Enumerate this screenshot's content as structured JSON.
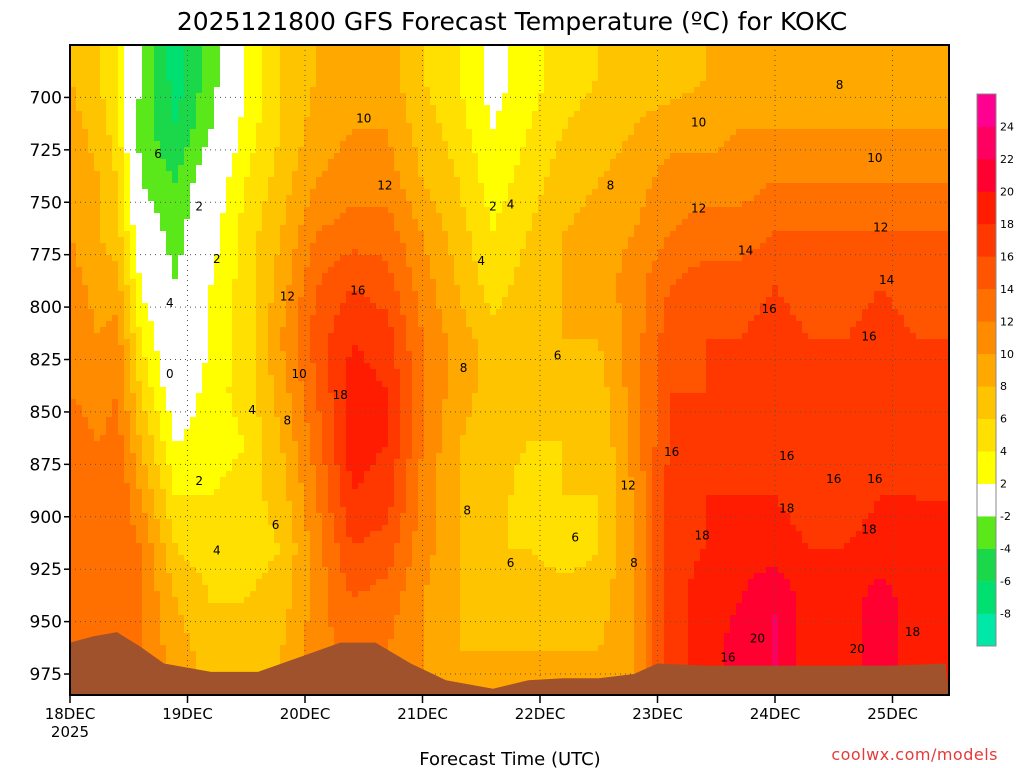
{
  "chart_data": {
    "type": "heatmap",
    "title": "2025121800 GFS Forecast Temperature (ºC) for KOKC",
    "xlabel": "Forecast Time (UTC)",
    "ylabel": "",
    "x_ticks": [
      {
        "label": "18DEC",
        "sub": "2025",
        "day": 0
      },
      {
        "label": "19DEC",
        "sub": "",
        "day": 1
      },
      {
        "label": "20DEC",
        "sub": "",
        "day": 2
      },
      {
        "label": "21DEC",
        "sub": "",
        "day": 3
      },
      {
        "label": "22DEC",
        "sub": "",
        "day": 4
      },
      {
        "label": "23DEC",
        "sub": "",
        "day": 5
      },
      {
        "label": "24DEC",
        "sub": "",
        "day": 6
      },
      {
        "label": "25DEC",
        "sub": "",
        "day": 7
      }
    ],
    "x_range_days": [
      0,
      7.45
    ],
    "y_ticks": [
      700,
      725,
      750,
      775,
      800,
      825,
      850,
      875,
      900,
      925,
      950,
      975
    ],
    "y_range_hpa": [
      675,
      985
    ],
    "colorbar": {
      "levels": [
        -10,
        -8,
        -6,
        -4,
        -2,
        2,
        4,
        6,
        8,
        10,
        12,
        14,
        16,
        18,
        20,
        22,
        24,
        26
      ],
      "labels": [
        "-8",
        "-6",
        "-4",
        "-2",
        "2",
        "4",
        "6",
        "8",
        "10",
        "12",
        "14",
        "16",
        "18",
        "20",
        "22",
        "24"
      ],
      "colors": [
        "#00e8a8",
        "#00e070",
        "#1ad84a",
        "#5ae81a",
        "#ffffff",
        "#ffff00",
        "#ffe000",
        "#ffc400",
        "#ffa800",
        "#ff8c00",
        "#ff7000",
        "#ff5400",
        "#ff3800",
        "#ff1c00",
        "#ff0030",
        "#ff0060",
        "#ff0090"
      ]
    },
    "series": [
      {
        "time_day": 0.0,
        "profile": [
          8,
          9,
          10,
          10,
          11,
          12,
          12,
          13,
          13,
          13,
          13,
          13
        ]
      },
      {
        "time_day": 0.25,
        "profile": [
          6,
          7,
          8,
          8,
          9,
          10,
          11,
          12,
          13,
          13,
          13,
          13
        ]
      },
      {
        "time_day": 0.4,
        "profile": [
          4,
          5,
          6,
          7,
          9,
          11,
          12,
          13,
          14,
          14,
          14,
          14
        ]
      },
      {
        "time_day": 0.6,
        "profile": [
          -2,
          -3,
          -2,
          0,
          2,
          4,
          6,
          8,
          10,
          12,
          12,
          12
        ]
      },
      {
        "time_day": 0.9,
        "profile": [
          -7,
          -6,
          -4,
          -3,
          -2,
          -1,
          0,
          2,
          4,
          6,
          8,
          9
        ]
      },
      {
        "time_day": 1.2,
        "profile": [
          -3,
          -2,
          0,
          1,
          2,
          2,
          3,
          3,
          4,
          5,
          6,
          7
        ]
      },
      {
        "time_day": 1.5,
        "profile": [
          2,
          3,
          4,
          5,
          5,
          5,
          5,
          4,
          5,
          5,
          6,
          7
        ]
      },
      {
        "time_day": 1.8,
        "profile": [
          6,
          6,
          7,
          8,
          9,
          10,
          9,
          8,
          7,
          6,
          7,
          8
        ]
      },
      {
        "time_day": 2.1,
        "profile": [
          8,
          9,
          10,
          12,
          14,
          15,
          14,
          13,
          12,
          11,
          11,
          11
        ]
      },
      {
        "time_day": 2.4,
        "profile": [
          9,
          10,
          11,
          13,
          16,
          18,
          19,
          19,
          18,
          16,
          14,
          13
        ]
      },
      {
        "time_day": 2.7,
        "profile": [
          9,
          10,
          11,
          13,
          15,
          17,
          18,
          18,
          17,
          15,
          13,
          12
        ]
      },
      {
        "time_day": 3.0,
        "profile": [
          6,
          7,
          8,
          10,
          11,
          12,
          12,
          12,
          11,
          11,
          10,
          10
        ]
      },
      {
        "time_day": 3.3,
        "profile": [
          4,
          5,
          6,
          7,
          8,
          9,
          9,
          8,
          8,
          8,
          8,
          8
        ]
      },
      {
        "time_day": 3.6,
        "profile": [
          1,
          2,
          3,
          4,
          5,
          7,
          7,
          7,
          7,
          6,
          7,
          8
        ]
      },
      {
        "time_day": 3.9,
        "profile": [
          3,
          4,
          5,
          6,
          7,
          7,
          6,
          6,
          5,
          6,
          7,
          8
        ]
      },
      {
        "time_day": 4.2,
        "profile": [
          5,
          6,
          7,
          8,
          8,
          8,
          7,
          6,
          6,
          5,
          7,
          8
        ]
      },
      {
        "time_day": 4.5,
        "profile": [
          6,
          7,
          8,
          9,
          9,
          8,
          7,
          6,
          6,
          6,
          7,
          8
        ]
      },
      {
        "time_day": 4.8,
        "profile": [
          7,
          8,
          9,
          10,
          11,
          11,
          11,
          11,
          10,
          10,
          10,
          10
        ]
      },
      {
        "time_day": 5.1,
        "profile": [
          7,
          9,
          11,
          12,
          14,
          15,
          16,
          16,
          17,
          17,
          17,
          17
        ]
      },
      {
        "time_day": 5.4,
        "profile": [
          8,
          9,
          11,
          13,
          15,
          16,
          16,
          17,
          18,
          18,
          19,
          19
        ]
      },
      {
        "time_day": 5.7,
        "profile": [
          8,
          10,
          11,
          13,
          15,
          16,
          17,
          17,
          18,
          19,
          20,
          21
        ]
      },
      {
        "time_day": 6.0,
        "profile": [
          8,
          10,
          12,
          14,
          16,
          17,
          17,
          17,
          18,
          19,
          22,
          22
        ]
      },
      {
        "time_day": 6.3,
        "profile": [
          8,
          10,
          12,
          14,
          15,
          16,
          16,
          16,
          17,
          18,
          19,
          19
        ]
      },
      {
        "time_day": 6.6,
        "profile": [
          8,
          10,
          12,
          14,
          15,
          16,
          16,
          16,
          17,
          18,
          19,
          19
        ]
      },
      {
        "time_day": 6.9,
        "profile": [
          8,
          10,
          12,
          14,
          16,
          17,
          17,
          17,
          18,
          19,
          21,
          21
        ]
      },
      {
        "time_day": 7.2,
        "profile": [
          8,
          10,
          12,
          14,
          15,
          16,
          17,
          17,
          18,
          18,
          19,
          19
        ]
      },
      {
        "time_day": 7.45,
        "profile": [
          8,
          10,
          12,
          14,
          15,
          16,
          17,
          17,
          18,
          18,
          19,
          19
        ]
      }
    ],
    "profile_levels_hpa": [
      690,
      715,
      740,
      765,
      790,
      815,
      840,
      865,
      890,
      915,
      940,
      965
    ],
    "contour_labels": [
      {
        "text": "8",
        "day": 6.55,
        "p": 694
      },
      {
        "text": "10",
        "day": 5.35,
        "p": 712
      },
      {
        "text": "10",
        "day": 6.85,
        "p": 729
      },
      {
        "text": "12",
        "day": 2.68,
        "p": 742
      },
      {
        "text": "10",
        "day": 2.5,
        "p": 710
      },
      {
        "text": "8",
        "day": 4.6,
        "p": 742
      },
      {
        "text": "12",
        "day": 5.35,
        "p": 753
      },
      {
        "text": "12",
        "day": 6.9,
        "p": 762
      },
      {
        "text": "14",
        "day": 5.75,
        "p": 773
      },
      {
        "text": "14",
        "day": 6.95,
        "p": 787
      },
      {
        "text": "16",
        "day": 2.45,
        "p": 792
      },
      {
        "text": "16",
        "day": 5.95,
        "p": 801
      },
      {
        "text": "16",
        "day": 6.8,
        "p": 814
      },
      {
        "text": "18",
        "day": 2.3,
        "p": 842
      },
      {
        "text": "12",
        "day": 1.85,
        "p": 795
      },
      {
        "text": "10",
        "day": 1.95,
        "p": 832
      },
      {
        "text": "8",
        "day": 1.85,
        "p": 854
      },
      {
        "text": "8",
        "day": 3.35,
        "p": 829
      },
      {
        "text": "6",
        "day": 4.15,
        "p": 823
      },
      {
        "text": "2",
        "day": 3.6,
        "p": 752
      },
      {
        "text": "4",
        "day": 3.75,
        "p": 751
      },
      {
        "text": "4",
        "day": 3.5,
        "p": 778
      },
      {
        "text": "6",
        "day": 0.75,
        "p": 727
      },
      {
        "text": "2",
        "day": 1.1,
        "p": 752
      },
      {
        "text": "2",
        "day": 1.25,
        "p": 777
      },
      {
        "text": "4",
        "day": 0.85,
        "p": 798
      },
      {
        "text": "0",
        "day": 0.85,
        "p": 832
      },
      {
        "text": "4",
        "day": 1.55,
        "p": 849
      },
      {
        "text": "2",
        "day": 1.1,
        "p": 883
      },
      {
        "text": "4",
        "day": 1.25,
        "p": 916
      },
      {
        "text": "6",
        "day": 1.75,
        "p": 904
      },
      {
        "text": "8",
        "day": 3.38,
        "p": 897
      },
      {
        "text": "6",
        "day": 3.75,
        "p": 922
      },
      {
        "text": "6",
        "day": 4.3,
        "p": 910
      },
      {
        "text": "8",
        "day": 4.8,
        "p": 922
      },
      {
        "text": "12",
        "day": 4.75,
        "p": 885
      },
      {
        "text": "16",
        "day": 5.12,
        "p": 869
      },
      {
        "text": "16",
        "day": 6.1,
        "p": 871
      },
      {
        "text": "16",
        "day": 6.5,
        "p": 882
      },
      {
        "text": "16",
        "day": 6.85,
        "p": 882
      },
      {
        "text": "18",
        "day": 5.38,
        "p": 909
      },
      {
        "text": "18",
        "day": 6.1,
        "p": 896
      },
      {
        "text": "18",
        "day": 6.8,
        "p": 906
      },
      {
        "text": "18",
        "day": 7.17,
        "p": 955
      },
      {
        "text": "16",
        "day": 5.6,
        "p": 967
      },
      {
        "text": "20",
        "day": 5.85,
        "p": 958
      },
      {
        "text": "20",
        "day": 6.7,
        "p": 963
      }
    ],
    "terrain_hpa": [
      {
        "day": 0.0,
        "p": 960
      },
      {
        "day": 0.2,
        "p": 957
      },
      {
        "day": 0.4,
        "p": 955
      },
      {
        "day": 0.6,
        "p": 962
      },
      {
        "day": 0.8,
        "p": 970
      },
      {
        "day": 1.2,
        "p": 974
      },
      {
        "day": 1.6,
        "p": 974
      },
      {
        "day": 2.0,
        "p": 966
      },
      {
        "day": 2.3,
        "p": 960
      },
      {
        "day": 2.6,
        "p": 960
      },
      {
        "day": 2.9,
        "p": 970
      },
      {
        "day": 3.2,
        "p": 978
      },
      {
        "day": 3.6,
        "p": 982
      },
      {
        "day": 3.9,
        "p": 978
      },
      {
        "day": 4.2,
        "p": 977
      },
      {
        "day": 4.5,
        "p": 977
      },
      {
        "day": 4.8,
        "p": 975
      },
      {
        "day": 5.0,
        "p": 970
      },
      {
        "day": 5.4,
        "p": 971
      },
      {
        "day": 5.8,
        "p": 971
      },
      {
        "day": 6.2,
        "p": 971
      },
      {
        "day": 6.6,
        "p": 971
      },
      {
        "day": 7.0,
        "p": 971
      },
      {
        "day": 7.45,
        "p": 970
      }
    ],
    "colors": {
      "terrain": "#a0522d",
      "grid": "#555555",
      "contour": "#000000",
      "freezing_line": "#c0006a"
    }
  },
  "credit": "coolwx.com/models"
}
